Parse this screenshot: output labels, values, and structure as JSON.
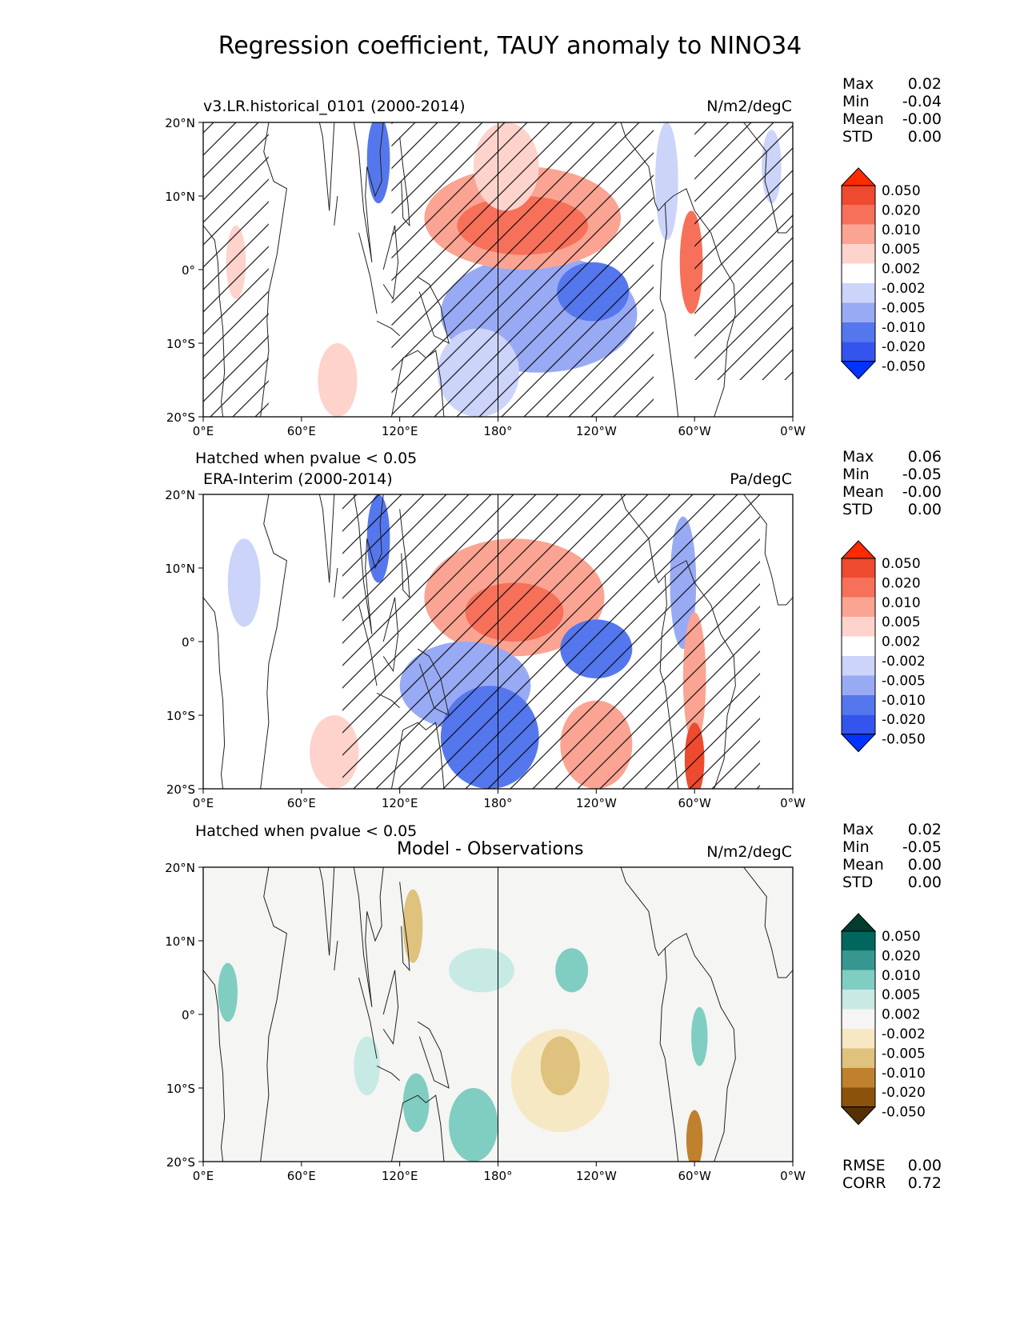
{
  "title": "Regression coefficient, TAUY anomaly to NINO34",
  "x_ticks": [
    "0°E",
    "60°E",
    "120°E",
    "180°",
    "120°W",
    "60°W",
    "0°W"
  ],
  "y_ticks": [
    "20°N",
    "10°N",
    "0°",
    "10°S",
    "20°S"
  ],
  "diverging_colors": [
    "#0033ff",
    "#3355ee",
    "#5577ee",
    "#99aaf4",
    "#ccd4fa",
    "#ffffff",
    "#fdd3cc",
    "#fba493",
    "#f7705a",
    "#ee4a2f",
    "#ff2a00"
  ],
  "brbg_colors": [
    "#543005",
    "#8c510a",
    "#bf812d",
    "#dfc27d",
    "#f6e8c3",
    "#f5f5f3",
    "#c7eae5",
    "#80cdc1",
    "#35978f",
    "#01665e",
    "#003c30"
  ],
  "colorbar_labels": [
    "0.050",
    "0.020",
    "0.010",
    "0.005",
    "0.002",
    "-0.002",
    "-0.005",
    "-0.010",
    "-0.020",
    "-0.050"
  ],
  "panels": [
    {
      "left_title": "v3.LR.historical_0101 (2000-2014)",
      "right_title": "N/m2/degC",
      "hatch_note": "Hatched when pvalue < 0.05",
      "stats": {
        "Max": "0.02",
        "Min": "-0.04",
        "Mean": "-0.00",
        "STD": "0.00"
      }
    },
    {
      "left_title": "ERA-Interim (2000-2014)",
      "right_title": "Pa/degC",
      "hatch_note": "Hatched when pvalue < 0.05",
      "stats": {
        "Max": "0.06",
        "Min": "-0.05",
        "Mean": "-0.00",
        "STD": "0.00"
      }
    },
    {
      "center_title": "Model - Observations",
      "right_title": "N/m2/degC",
      "stats": {
        "Max": "0.02",
        "Min": "-0.05",
        "Mean": "0.00",
        "STD": "0.00"
      },
      "footer": {
        "RMSE": "0.00",
        "CORR": "0.72"
      }
    }
  ],
  "chart_data": [
    {
      "type": "heatmap",
      "title": "v3.LR.historical_0101 (2000-2014)",
      "units": "N/m2/degC",
      "x_range_deg_east": [
        0,
        360
      ],
      "y_range_deg_lat": [
        -20,
        20
      ],
      "levels": [
        -0.05,
        -0.02,
        -0.01,
        -0.005,
        -0.002,
        0.002,
        0.005,
        0.01,
        0.02,
        0.05
      ],
      "blobs": [
        {
          "lon": 195,
          "lat": 6,
          "rlon": 40,
          "rlat": 4,
          "v": 0.015
        },
        {
          "lon": 195,
          "lat": 7,
          "rlon": 60,
          "rlat": 7,
          "v": 0.007
        },
        {
          "lon": 185,
          "lat": 14,
          "rlon": 20,
          "rlat": 6,
          "v": 0.004
        },
        {
          "lon": 238,
          "lat": -3,
          "rlon": 22,
          "rlat": 4,
          "v": -0.012
        },
        {
          "lon": 205,
          "lat": -6,
          "rlon": 60,
          "rlat": 8,
          "v": -0.006
        },
        {
          "lon": 168,
          "lat": -14,
          "rlon": 25,
          "rlat": 6,
          "v": -0.004
        },
        {
          "lon": 107,
          "lat": 15,
          "rlon": 7,
          "rlat": 6,
          "v": -0.014
        },
        {
          "lon": 298,
          "lat": 1,
          "rlon": 7,
          "rlat": 7,
          "v": 0.012
        },
        {
          "lon": 283,
          "lat": 12,
          "rlon": 7,
          "rlat": 8,
          "v": -0.004
        },
        {
          "lon": 82,
          "lat": -15,
          "rlon": 12,
          "rlat": 5,
          "v": 0.004
        },
        {
          "lon": 20,
          "lat": 1,
          "rlon": 6,
          "rlat": 5,
          "v": 0.003
        },
        {
          "lon": 347,
          "lat": 14,
          "rlon": 6,
          "rlat": 5,
          "v": -0.003
        }
      ],
      "hatched_regions": [
        {
          "lon": [
            115,
            275
          ],
          "lat": [
            -20,
            20
          ]
        },
        {
          "lon": [
            0,
            40
          ],
          "lat": [
            -20,
            20
          ]
        },
        {
          "lon": [
            300,
            360
          ],
          "lat": [
            -15,
            20
          ]
        }
      ]
    },
    {
      "type": "heatmap",
      "title": "ERA-Interim (2000-2014)",
      "units": "Pa/degC",
      "x_range_deg_east": [
        0,
        360
      ],
      "y_range_deg_lat": [
        -20,
        20
      ],
      "levels": [
        -0.05,
        -0.02,
        -0.01,
        -0.005,
        -0.002,
        0.002,
        0.005,
        0.01,
        0.02,
        0.05
      ],
      "blobs": [
        {
          "lon": 190,
          "lat": 4,
          "rlon": 30,
          "rlat": 4,
          "v": 0.015
        },
        {
          "lon": 190,
          "lat": 6,
          "rlon": 55,
          "rlat": 8,
          "v": 0.006
        },
        {
          "lon": 240,
          "lat": -1,
          "rlon": 22,
          "rlat": 4,
          "v": -0.012
        },
        {
          "lon": 175,
          "lat": -13,
          "rlon": 30,
          "rlat": 7,
          "v": -0.012
        },
        {
          "lon": 160,
          "lat": -6,
          "rlon": 40,
          "rlat": 6,
          "v": -0.006
        },
        {
          "lon": 240,
          "lat": -14,
          "rlon": 22,
          "rlat": 6,
          "v": 0.006
        },
        {
          "lon": 300,
          "lat": -16,
          "rlon": 6,
          "rlat": 5,
          "v": 0.03
        },
        {
          "lon": 300,
          "lat": -5,
          "rlon": 7,
          "rlat": 9,
          "v": 0.008
        },
        {
          "lon": 107,
          "lat": 14,
          "rlon": 7,
          "rlat": 6,
          "v": -0.014
        },
        {
          "lon": 293,
          "lat": 8,
          "rlon": 8,
          "rlat": 9,
          "v": -0.006
        },
        {
          "lon": 80,
          "lat": -15,
          "rlon": 15,
          "rlat": 5,
          "v": 0.004
        },
        {
          "lon": 25,
          "lat": 8,
          "rlon": 10,
          "rlat": 6,
          "v": -0.004
        }
      ],
      "hatched_regions": [
        {
          "lon": [
            85,
            340
          ],
          "lat": [
            -20,
            20
          ]
        }
      ]
    },
    {
      "type": "heatmap",
      "title": "Model - Observations",
      "units": "N/m2/degC",
      "x_range_deg_east": [
        0,
        360
      ],
      "y_range_deg_lat": [
        -20,
        20
      ],
      "levels": [
        -0.05,
        -0.02,
        -0.01,
        -0.005,
        -0.002,
        0.002,
        0.005,
        0.01,
        0.02,
        0.05
      ],
      "blobs": [
        {
          "lon": 218,
          "lat": -7,
          "rlon": 12,
          "rlat": 4,
          "v": -0.006
        },
        {
          "lon": 218,
          "lat": -9,
          "rlon": 30,
          "rlat": 7,
          "v": -0.003
        },
        {
          "lon": 165,
          "lat": -15,
          "rlon": 15,
          "rlat": 5,
          "v": 0.006
        },
        {
          "lon": 170,
          "lat": 6,
          "rlon": 20,
          "rlat": 3,
          "v": 0.004
        },
        {
          "lon": 225,
          "lat": 6,
          "rlon": 10,
          "rlat": 3,
          "v": 0.005
        },
        {
          "lon": 300,
          "lat": -17,
          "rlon": 5,
          "rlat": 4,
          "v": -0.015
        },
        {
          "lon": 303,
          "lat": -3,
          "rlon": 5,
          "rlat": 4,
          "v": 0.007
        },
        {
          "lon": 128,
          "lat": 12,
          "rlon": 6,
          "rlat": 5,
          "v": -0.006
        },
        {
          "lon": 15,
          "lat": 3,
          "rlon": 6,
          "rlat": 4,
          "v": 0.005
        },
        {
          "lon": 100,
          "lat": -7,
          "rlon": 8,
          "rlat": 4,
          "v": 0.004
        },
        {
          "lon": 130,
          "lat": -12,
          "rlon": 8,
          "rlat": 4,
          "v": 0.006
        }
      ],
      "hatched_regions": []
    }
  ]
}
